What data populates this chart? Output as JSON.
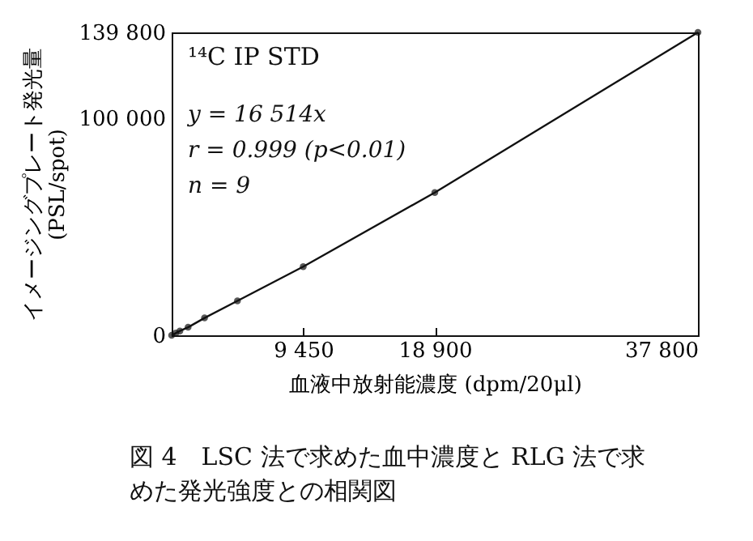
{
  "chart_data": {
    "type": "line",
    "xlabel": "血液中放射能濃度 (dpm/20μl)",
    "ylabel": "イメージングプレート発光量 (PSL/spot)",
    "x": [
      0,
      295,
      590,
      1181,
      2362,
      4725,
      9450,
      18900,
      37800
    ],
    "series": [
      {
        "color": "#111111",
        "values": [
          0,
          1000,
          2000,
          3700,
          8000,
          15900,
          31700,
          65900,
          139800
        ]
      }
    ],
    "xlim": [
      0,
      37800
    ],
    "ylim": [
      0,
      139800
    ],
    "xticks": [
      {
        "value": 9450,
        "label": "9 450"
      },
      {
        "value": 18900,
        "label": "18 900"
      },
      {
        "value": 37800,
        "label": "37 800"
      }
    ],
    "yticks": [
      0,
      {
        "value": 100000,
        "label": "100 000"
      },
      {
        "value": 139800,
        "label": "139 800"
      }
    ],
    "grid": false,
    "marker": "circle",
    "line_style": "solid",
    "annotations": [
      "¹⁴C IP STD",
      "y = 16 514x",
      "r = 0.999 (p<0.01)",
      "n = 9",
      "図 4　LSC 法で求めた血中濃度と RLG 法で求めた発光強度との相関図"
    ]
  }
}
